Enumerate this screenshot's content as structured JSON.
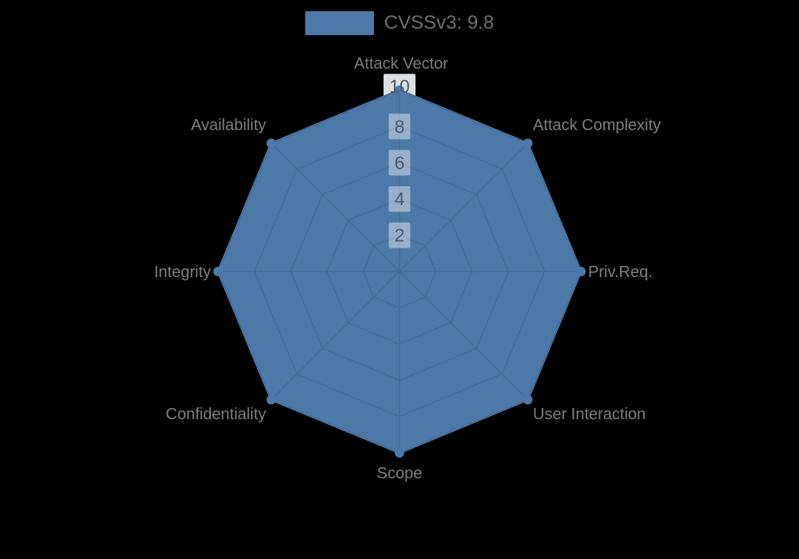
{
  "background_color": "#000000",
  "legend": {
    "label": "CVSSv3: 9.8",
    "swatch_color": "#4d79a8",
    "text_color": "#6e6e6e"
  },
  "chart_data": {
    "type": "radar",
    "axes": [
      "Attack Vector",
      "Attack Complexity",
      "Priv.Req.",
      "User Interaction",
      "Scope",
      "Confidentiality",
      "Integrity",
      "Availability"
    ],
    "series": [
      {
        "name": "CVSSv3: 9.8",
        "values": [
          10,
          10,
          10,
          10,
          10,
          10,
          10,
          10
        ]
      }
    ],
    "max": 10,
    "tick_interval": 2,
    "ticks": [
      2,
      4,
      6,
      8,
      10
    ],
    "grid": "spider-web",
    "legend_position": "top-center",
    "colors": {
      "series_fill": "#4d79a8",
      "series_line": "#4d79a8",
      "grid_line": "#476b93",
      "axis_name_text": "#7f7f7f",
      "tick_text": "#4e5a66",
      "tick_box_fill": "rgba(255,255,255,0.42)",
      "outer_tick_box_fill": "rgba(240,243,246,0.92)"
    }
  }
}
